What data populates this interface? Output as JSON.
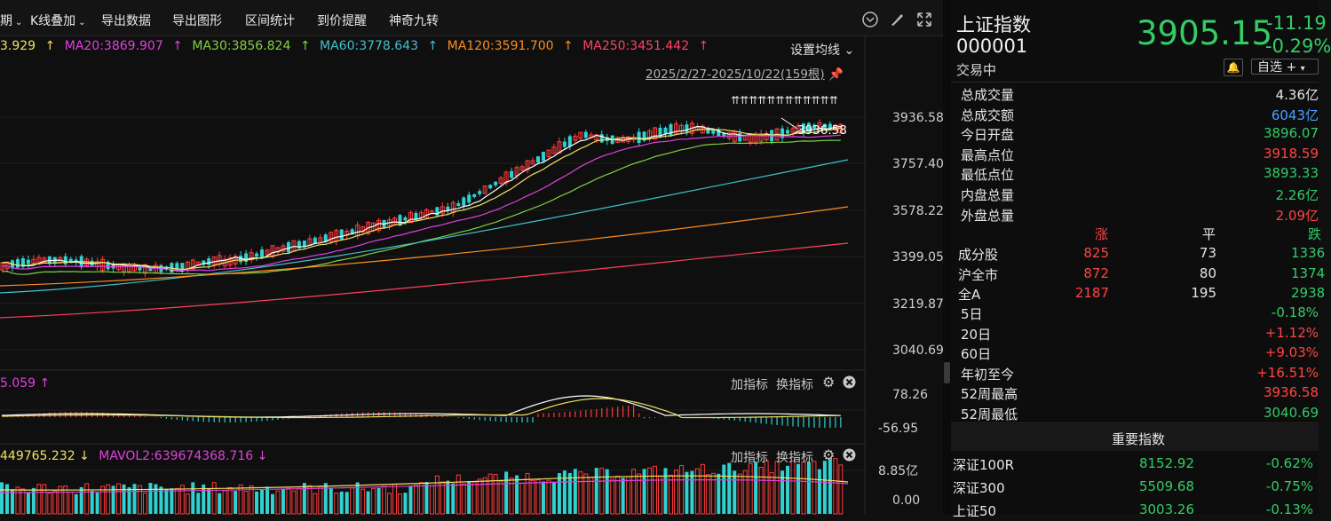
{
  "toolbar": {
    "period": "期",
    "kline_overlay": "K线叠加",
    "export_data": "导出数据",
    "export_graph": "导出图形",
    "range_stats": "区间统计",
    "price_alert": "到价提醒",
    "magic_nine": "神奇九转"
  },
  "ma": {
    "ma10": "3.929",
    "ma20": "MA20:3869.907",
    "ma30": "MA30:3856.824",
    "ma60": "MA60:3778.643",
    "ma120": "MA120:3591.700",
    "ma250": "MA250:3451.442",
    "settings": "设置均线",
    "colors": {
      "ma10": "#f0e060",
      "ma20": "#e040e0",
      "ma30": "#80d040",
      "ma60": "#40c0d0",
      "ma120": "#ff8c20",
      "ma250": "#ff4060"
    }
  },
  "range_label": "2025/2/27-2025/10/22(159根)",
  "price_axis": [
    "3936.58",
    "3757.40",
    "3578.22",
    "3399.05",
    "3219.87",
    "3040.69"
  ],
  "high_mark": "3936.58",
  "macd": {
    "value": "5.059",
    "add_indicator": "加指标",
    "change_indicator": "换指标",
    "axis": [
      "78.26",
      "-56.95"
    ]
  },
  "volume": {
    "mavol1": "449765.232",
    "mavol2": "MAVOL2:639674368.716",
    "add_indicator": "加指标",
    "change_indicator": "换指标",
    "axis": [
      "8.85亿",
      "0.00"
    ]
  },
  "quote": {
    "name": "上证指数",
    "code": "000001",
    "price": "3905.15",
    "change": "-11.19",
    "change_pct": "-0.29%",
    "status": "交易中",
    "watchlist": "自选 +"
  },
  "stats": [
    {
      "label": "总成交量",
      "value": "4.36亿",
      "color": "white"
    },
    {
      "label": "总成交额",
      "value": "6043亿",
      "color": "blue"
    },
    {
      "label": "今日开盘",
      "value": "3896.07",
      "color": "green"
    },
    {
      "label": "最高点位",
      "value": "3918.59",
      "color": "red"
    },
    {
      "label": "最低点位",
      "value": "3893.33",
      "color": "green"
    },
    {
      "label": "内盘总量",
      "value": "2.26亿",
      "color": "green"
    },
    {
      "label": "外盘总量",
      "value": "2.09亿",
      "color": "red"
    }
  ],
  "breadth": {
    "headers": [
      "涨",
      "平",
      "跌"
    ],
    "rows": [
      {
        "label": "成分股",
        "up": "825",
        "flat": "73",
        "down": "1336"
      },
      {
        "label": "沪全市",
        "up": "872",
        "flat": "80",
        "down": "1374"
      },
      {
        "label": "全A",
        "up": "2187",
        "flat": "195",
        "down": "2938"
      }
    ]
  },
  "perf": [
    {
      "label": "5日",
      "value": "-0.18%",
      "color": "green"
    },
    {
      "label": "20日",
      "value": "+1.12%",
      "color": "red"
    },
    {
      "label": "60日",
      "value": "+9.03%",
      "color": "red"
    },
    {
      "label": "年初至今",
      "value": "+16.51%",
      "color": "red"
    },
    {
      "label": "52周最高",
      "value": "3936.58",
      "color": "red"
    },
    {
      "label": "52周最低",
      "value": "3040.69",
      "color": "green"
    }
  ],
  "major_title": "重要指数",
  "indices": [
    {
      "name": "深证100R",
      "price": "8152.92",
      "pct": "-0.62%"
    },
    {
      "name": "深证300",
      "price": "5509.68",
      "pct": "-0.75%"
    },
    {
      "name": "上证50",
      "price": "3003.26",
      "pct": "-0.13%"
    }
  ]
}
